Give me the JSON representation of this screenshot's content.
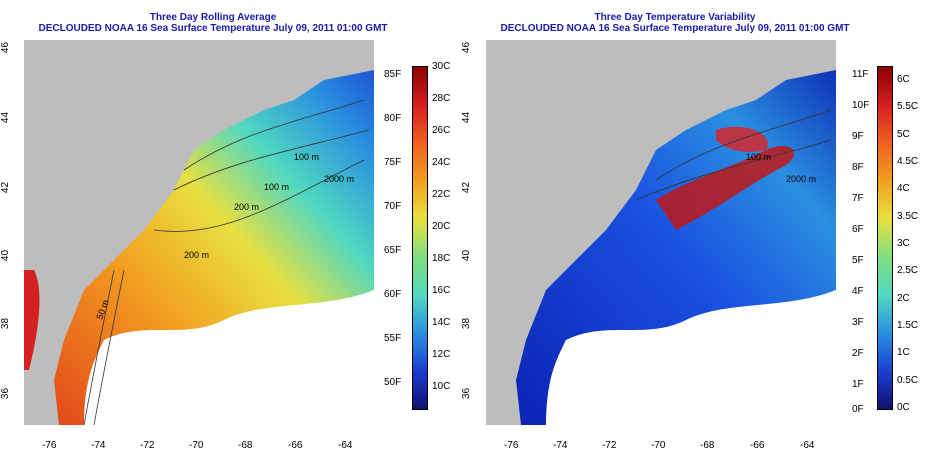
{
  "left": {
    "title_line1": "Three Day Rolling Average",
    "title_line2": "DECLOUDED NOAA 16 Sea Surface Temperature July 09, 2011 01:00 GMT",
    "contours": [
      "100 m",
      "200 m",
      "2000 m",
      "50 m",
      "100 m",
      "200 m"
    ],
    "x_ticks": [
      "-76",
      "-74",
      "-72",
      "-70",
      "-68",
      "-66",
      "-64"
    ],
    "y_ticks": [
      "46",
      "44",
      "42",
      "40",
      "38",
      "36"
    ],
    "cbar_f": [
      "85F",
      "80F",
      "75F",
      "70F",
      "65F",
      "60F",
      "55F",
      "50F"
    ],
    "cbar_c": [
      "30C",
      "28C",
      "26C",
      "24C",
      "22C",
      "20C",
      "18C",
      "16C",
      "14C",
      "12C",
      "10C"
    ],
    "colors": {
      "warm": "#d42020",
      "cold": "#1a3fd0",
      "land": "#bdbdbd",
      "cloud": "#ffffff"
    }
  },
  "right": {
    "title_line1": "Three Day Temperature Variability",
    "title_line2": "DECLOUDED NOAA 16 Sea Surface Temperature July 09, 2011 01:00 GMT",
    "contours": [
      "100 m",
      "2000 m"
    ],
    "x_ticks": [
      "-76",
      "-74",
      "-72",
      "-70",
      "-68",
      "-66",
      "-64"
    ],
    "y_ticks": [
      "46",
      "44",
      "42",
      "40",
      "38",
      "36"
    ],
    "cbar_f": [
      "11F",
      "10F",
      "9F",
      "8F",
      "7F",
      "6F",
      "5F",
      "4F",
      "3F",
      "2F",
      "1F",
      "0F"
    ],
    "cbar_c": [
      "6C",
      "5.5C",
      "5C",
      "4.5C",
      "4C",
      "3.5C",
      "3C",
      "2.5C",
      "2C",
      "1.5C",
      "1C",
      "0.5C",
      "0C"
    ],
    "colors": {
      "low": "#0a1fb0",
      "high": "#b01010",
      "land": "#bdbdbd",
      "cloud": "#ffffff"
    }
  }
}
